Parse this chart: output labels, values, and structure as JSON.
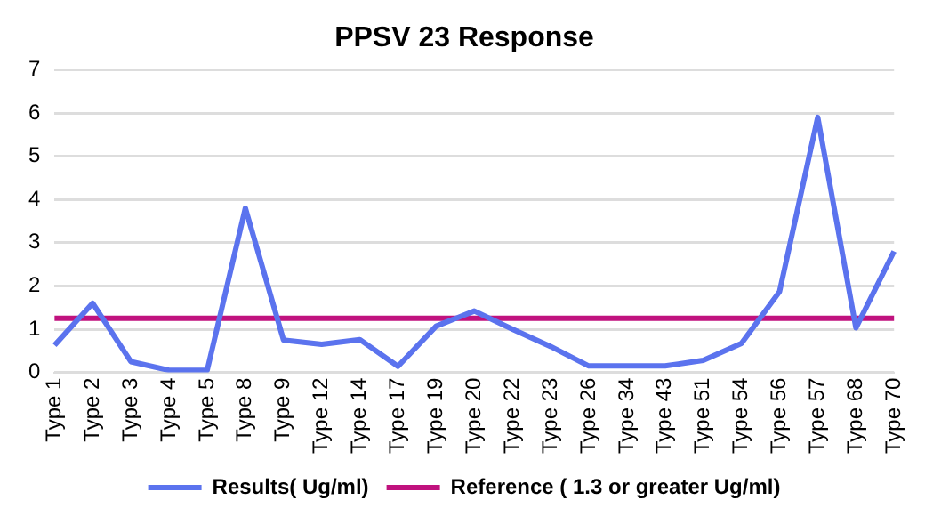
{
  "chart_data": {
    "type": "line",
    "title": "PPSV 23 Response",
    "categories": [
      "Type 1",
      "Type 2",
      "Type 3",
      "Type 4",
      "Type 5",
      "Type 8",
      "Type 9",
      "Type 12",
      "Type 14",
      "Type 17",
      "Type 19",
      "Type 20",
      "Type 22",
      "Type 23",
      "Type 26",
      "Type 34",
      "Type 43",
      "Type 51",
      "Type 54",
      "Type 56",
      "Type 57",
      "Type 68",
      "Type 70"
    ],
    "series": [
      {
        "name": "Results( Ug/ml)",
        "color": "#5b73ee",
        "values": [
          0.63,
          1.6,
          0.25,
          0.05,
          0.05,
          3.8,
          0.75,
          0.65,
          0.76,
          0.14,
          1.07,
          1.42,
          1.0,
          0.6,
          0.15,
          0.15,
          0.15,
          0.28,
          0.67,
          1.87,
          5.9,
          1.03,
          2.8
        ]
      },
      {
        "name": "Reference ( 1.3 or greater Ug/ml)",
        "color": "#c0127e",
        "values": [
          1.25,
          1.25,
          1.25,
          1.25,
          1.25,
          1.25,
          1.25,
          1.25,
          1.25,
          1.25,
          1.25,
          1.25,
          1.25,
          1.25,
          1.25,
          1.25,
          1.25,
          1.25,
          1.25,
          1.25,
          1.25,
          1.25,
          1.25
        ]
      }
    ],
    "ylim": [
      0,
      7
    ],
    "yticks": [
      0,
      1,
      2,
      3,
      4,
      5,
      6,
      7
    ],
    "grid": "y",
    "legend": "bottom",
    "marker": "none",
    "line_style": "solid"
  }
}
